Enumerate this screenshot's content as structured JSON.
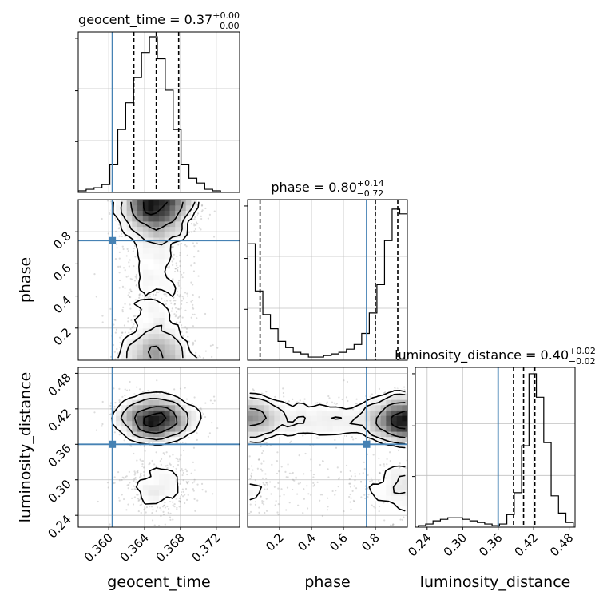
{
  "chart_data": {
    "type": "corner",
    "colors": {
      "truth": "#4682b4",
      "line": "#000000",
      "grid": "#c0c0c0",
      "samples": "#808080"
    },
    "parameters": [
      "geocent_time",
      "phase",
      "luminosity_distance"
    ],
    "titles": [
      {
        "text": "geocent_time = 0.37",
        "sup": "+0.00",
        "sub": "−0.00"
      },
      {
        "text": "phase = 0.80",
        "sup": "+0.14",
        "sub": "−0.72"
      },
      {
        "text": "luminosity_distance = 0.40",
        "sup": "+0.02",
        "sub": "−0.02"
      }
    ],
    "axis_labels": {
      "x": [
        "geocent_time",
        "phase",
        "luminosity_distance"
      ],
      "y": [
        "phase",
        "luminosity_distance"
      ]
    },
    "ranges": {
      "geocent_time": [
        0.3566,
        0.3746
      ],
      "phase": [
        0.0,
        1.0
      ],
      "luminosity_distance": [
        0.22,
        0.49
      ]
    },
    "ticks": {
      "geocent_time": [
        "0.360",
        "0.364",
        "0.368",
        "0.372"
      ],
      "phase": [
        "0.2",
        "0.4",
        "0.6",
        "0.8"
      ],
      "luminosity_distance": [
        "0.24",
        "0.30",
        "0.36",
        "0.42",
        "0.48"
      ]
    },
    "truths": {
      "geocent_time": 0.3604,
      "phase": 0.745,
      "luminosity_distance": 0.36
    },
    "quantiles": {
      "geocent_time": [
        0.3628,
        0.3653,
        0.3678
      ],
      "phase": [
        0.078,
        0.8,
        0.94
      ],
      "luminosity_distance": [
        0.386,
        0.403,
        0.422
      ]
    },
    "hist_1d": {
      "geocent_time": [
        0.01,
        0.02,
        0.03,
        0.05,
        0.18,
        0.4,
        0.57,
        0.73,
        0.89,
        0.99,
        0.85,
        0.65,
        0.4,
        0.18,
        0.09,
        0.06,
        0.02,
        0.01,
        0.0,
        0.0
      ],
      "phase": [
        0.74,
        0.44,
        0.29,
        0.2,
        0.12,
        0.08,
        0.05,
        0.04,
        0.02,
        0.02,
        0.03,
        0.04,
        0.05,
        0.07,
        0.1,
        0.17,
        0.3,
        0.48,
        0.76,
        0.96,
        0.93
      ],
      "luminosity_distance": [
        0.01,
        0.02,
        0.04,
        0.05,
        0.06,
        0.06,
        0.05,
        0.04,
        0.03,
        0.02,
        0.01,
        0.02,
        0.08,
        0.22,
        0.52,
        0.98,
        0.83,
        0.54,
        0.2,
        0.09,
        0.03
      ]
    }
  }
}
